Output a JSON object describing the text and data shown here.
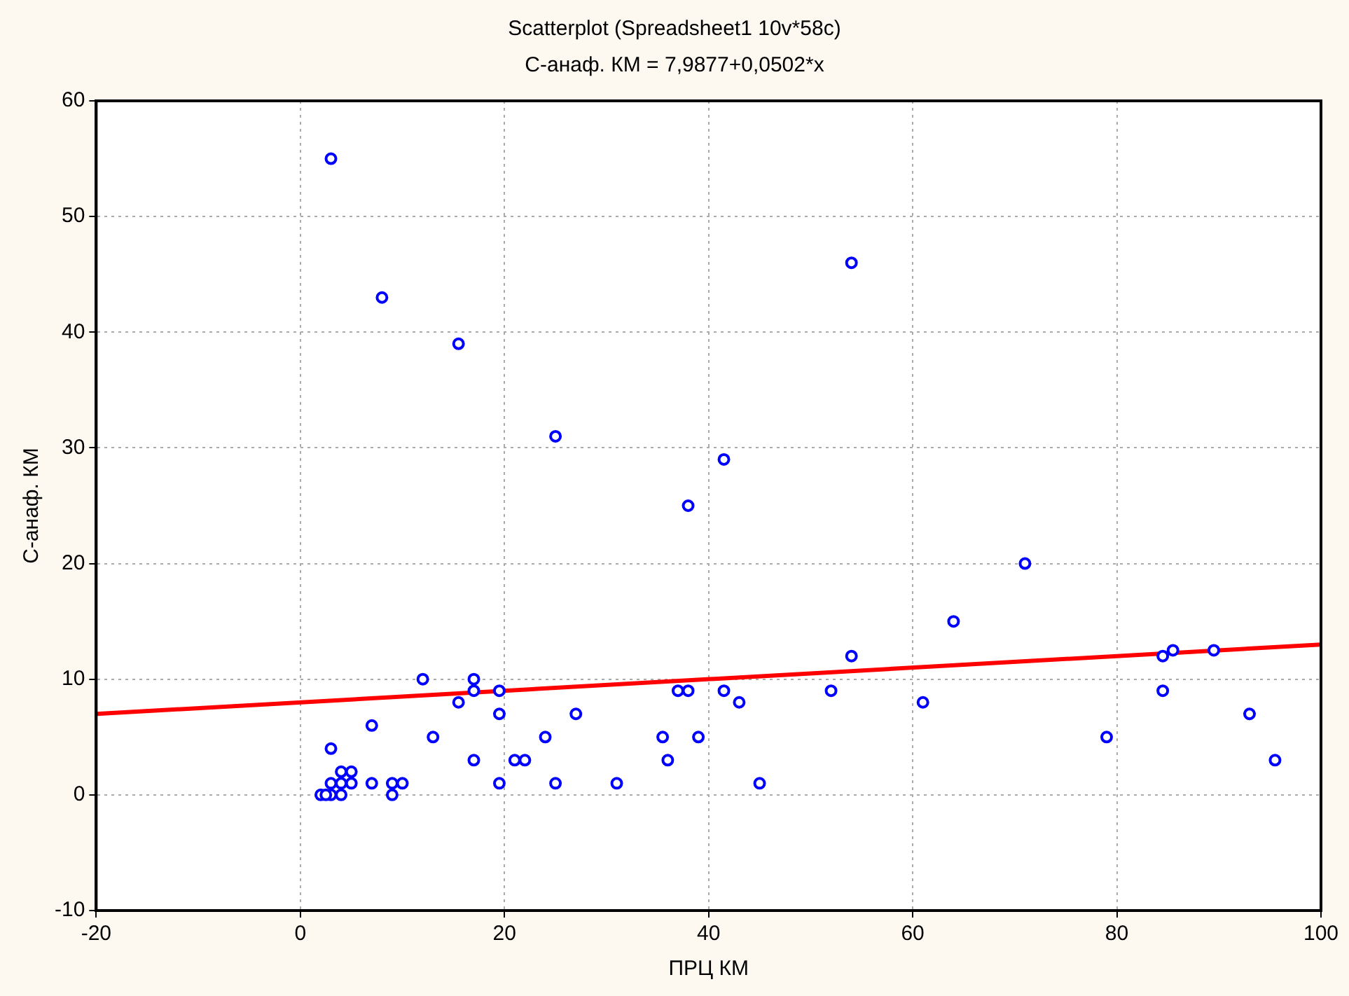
{
  "chart_data": {
    "type": "scatter",
    "title": "Scatterplot (Spreadsheet1 10v*58c)",
    "subtitle": "С-анаф. КМ = 7,9877+0,0502*x",
    "xlabel": "ПРЦ КМ",
    "ylabel": "С-анаф. КМ",
    "xlim": [
      -20,
      100
    ],
    "xticks": [
      -20,
      0,
      20,
      40,
      60,
      80,
      100
    ],
    "ylim": [
      -10,
      60
    ],
    "yticks": [
      -10,
      0,
      10,
      20,
      30,
      40,
      50,
      60
    ],
    "grid": true,
    "marker": "circle",
    "legend": false,
    "series": [
      {
        "color": "#0000ff",
        "x": [
          3,
          8,
          15.5,
          25,
          54,
          41.5,
          38,
          71,
          64,
          54,
          85.5,
          89.5,
          84.5,
          84.5,
          93,
          95.5,
          79,
          61,
          52,
          43,
          41.5,
          38,
          37,
          39,
          35.5,
          36,
          45,
          31,
          27,
          25,
          24,
          22,
          21,
          19.5,
          19.5,
          19.5,
          17,
          17,
          17,
          15.5,
          13,
          12,
          10,
          9,
          9,
          7,
          7,
          5,
          5,
          4,
          4,
          4,
          3,
          3,
          3,
          2,
          2.5
        ],
        "values": [
          55,
          43,
          39,
          31,
          46,
          29,
          25,
          20,
          15,
          12,
          12.5,
          12.5,
          12,
          9,
          7,
          3,
          5,
          8,
          9,
          8,
          9,
          9,
          9,
          5,
          5,
          3,
          1,
          1,
          7,
          1,
          5,
          3,
          3,
          9,
          7,
          1,
          10,
          9,
          3,
          8,
          5,
          10,
          1,
          1,
          0,
          6,
          1,
          2,
          1,
          2,
          1,
          0,
          4,
          1,
          0,
          0,
          0
        ]
      },
      {
        "type": "line",
        "color": "#ff0000",
        "x": [
          -20,
          100
        ],
        "values": [
          7,
          13
        ],
        "marker": "none"
      }
    ]
  }
}
